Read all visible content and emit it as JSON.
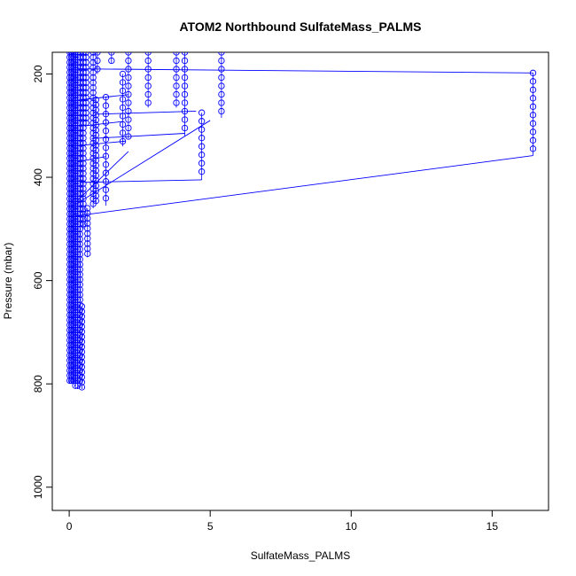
{
  "chart_data": {
    "type": "scatter",
    "title": "ATOM2 Northbound SulfateMass_PALMS",
    "xlabel": "SulfateMass_PALMS",
    "ylabel": "Pressure (mbar)",
    "xlim": [
      -0.6,
      17.0
    ],
    "ylim": [
      1045,
      158
    ],
    "y_reversed": true,
    "x_ticks": [
      0,
      5,
      10,
      15
    ],
    "y_ticks": [
      200,
      400,
      600,
      800,
      1000
    ],
    "grid": false,
    "legend": "none",
    "marker": "open-circle",
    "color": "#0000ff",
    "columns": [
      {
        "x": 16.45,
        "p_top": 198,
        "p_bottom": 358
      },
      {
        "x": 5.4,
        "p_top": 158,
        "p_bottom": 285
      },
      {
        "x": 4.7,
        "p_top": 275,
        "p_bottom": 405
      },
      {
        "x": 4.1,
        "p_top": 158,
        "p_bottom": 320
      },
      {
        "x": 3.8,
        "p_top": 158,
        "p_bottom": 265
      },
      {
        "x": 2.8,
        "p_top": 158,
        "p_bottom": 265
      },
      {
        "x": 2.1,
        "p_top": 158,
        "p_bottom": 325
      },
      {
        "x": 1.9,
        "p_top": 200,
        "p_bottom": 340
      },
      {
        "x": 1.5,
        "p_top": 158,
        "p_bottom": 180
      },
      {
        "x": 1.3,
        "p_top": 245,
        "p_bottom": 455
      },
      {
        "x": 1.0,
        "p_top": 158,
        "p_bottom": 200
      },
      {
        "x": 0.95,
        "p_top": 250,
        "p_bottom": 450
      },
      {
        "x": 0.85,
        "p_top": 158,
        "p_bottom": 460
      },
      {
        "x": 0.65,
        "p_top": 460,
        "p_bottom": 555
      },
      {
        "x": 0.6,
        "p_top": 158,
        "p_bottom": 300
      },
      {
        "x": 0.5,
        "p_top": 158,
        "p_bottom": 500
      },
      {
        "x": 0.45,
        "p_top": 650,
        "p_bottom": 810
      },
      {
        "x": 0.38,
        "p_top": 158,
        "p_bottom": 800
      },
      {
        "x": 0.3,
        "p_top": 158,
        "p_bottom": 810
      },
      {
        "x": 0.22,
        "p_top": 158,
        "p_bottom": 805
      },
      {
        "x": 0.15,
        "p_top": 158,
        "p_bottom": 800
      },
      {
        "x": 0.08,
        "p_top": 158,
        "p_bottom": 800
      },
      {
        "x": 0.02,
        "p_top": 158,
        "p_bottom": 800
      }
    ],
    "connecting_lines": [
      {
        "x": [
          0.3,
          16.45
        ],
        "y": [
          190,
          198
        ]
      },
      {
        "x": [
          0.2,
          16.45
        ],
        "y": [
          475,
          358
        ]
      },
      {
        "x": [
          0.4,
          4.7
        ],
        "y": [
          410,
          405
        ]
      },
      {
        "x": [
          0.3,
          5.0
        ],
        "y": [
          450,
          290
        ]
      },
      {
        "x": [
          0.8,
          4.1
        ],
        "y": [
          325,
          315
        ]
      },
      {
        "x": [
          0.9,
          4.5
        ],
        "y": [
          278,
          272
        ]
      },
      {
        "x": [
          0.4,
          2.1
        ],
        "y": [
          250,
          240
        ]
      },
      {
        "x": [
          0.6,
          1.9
        ],
        "y": [
          300,
          292
        ]
      },
      {
        "x": [
          0.3,
          1.3
        ],
        "y": [
          370,
          360
        ]
      },
      {
        "x": [
          0.1,
          2.0
        ],
        "y": [
          340,
          330
        ]
      },
      {
        "x": [
          0.2,
          2.1
        ],
        "y": [
          450,
          350
        ]
      }
    ]
  }
}
